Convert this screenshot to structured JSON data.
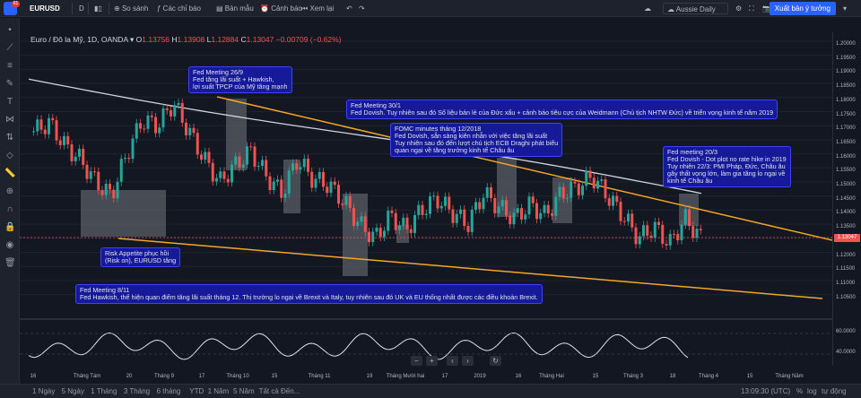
{
  "topbar": {
    "badge": "61",
    "symbol": "EURUSD",
    "interval": "D",
    "compare": "So sánh",
    "indicators": "Các chỉ báo",
    "templates": "Bản mẫu",
    "alert": "Cảnh báo",
    "replay": "Xem lại",
    "layout_name": "Aussie Daily",
    "trade_button": "Xuất bản ý tưởng"
  },
  "legend": {
    "title": "Euro / Đô la Mỹ, 1D, OANDA",
    "o_label": "O",
    "o": "1.13756",
    "h_label": "H",
    "h": "1.13908",
    "l_label": "L",
    "l": "1.12884",
    "c_label": "C",
    "c": "1.13047",
    "change": "−0.00709 (−0.62%)"
  },
  "price_axis": {
    "ticks": [
      "1.20000",
      "1.19500",
      "1.19000",
      "1.18500",
      "1.18000",
      "1.17500",
      "1.17000",
      "1.16500",
      "1.16000",
      "1.15500",
      "1.15000",
      "1.14500",
      "1.14000",
      "1.13500",
      "1.12500",
      "1.12000",
      "1.11500",
      "1.11000",
      "1.10500"
    ],
    "last_price": "1.13047",
    "osc_ticks": [
      "60.0000",
      "40.0000"
    ]
  },
  "time_axis": {
    "ticks": [
      "16",
      "Tháng Tám",
      "20",
      "Tháng 9",
      "17",
      "Tháng 10",
      "15",
      "Tháng 11",
      "19",
      "Tháng Mười hai",
      "17",
      "2019",
      "16",
      "Tháng Hai",
      "15",
      "Tháng 3",
      "18",
      "Tháng 4",
      "15",
      "Tháng Năm"
    ]
  },
  "notes": {
    "n1": "Fed Meeting 26/9\nFed tăng lãi suất + Hawkish,\nlợi suất TPCP của Mỹ tăng mạnh",
    "n2": "Fed Meeting 30/1\nFed Dovish. Tuy nhiên sau đó Số liệu bán lẻ của Đức xấu + cảnh báo tiêu cực của Weidmann (Chủ tịch NHTW Đức) về triển vọng kinh tế năm 2019",
    "n3": "FOMC minutes tháng 12/2018\nFed Dovish, sẵn sàng kiên nhẫn với việc tăng lãi suất\nTuy nhiên sau đó đến lượt chủ tịch ECB Draghi phát biểu\nquan ngại về tăng trưởng kinh tế Châu âu",
    "n4": "Fed meeting 20/3\nFed Dovish - Dot plot no rate hike in 2019\nTuy nhiên 22/3: PMI Pháp, Đức, Châu âu\ngây thất vọng lớn, làm gia tăng lo ngại về\nkinh tế Châu âu",
    "n5": "Risk Appetite phục hồi\n(Risk on), EURUSD tăng",
    "n6": "Fed Meeting 8/11\nFed Hawkish, thể hiện quan điểm tăng lãi suất tháng 12. Thị trường lo ngại về Brexit và Italy, tuy nhiên sau đó UK và EU thống nhất được các điều khoản Brexit."
  },
  "bottombar": {
    "ranges": [
      "1 Ngày",
      "5 Ngày",
      "1 Tháng",
      "3 Tháng",
      "6 tháng",
      "YTD",
      "1 Năm",
      "5 Năm",
      "Tất cả"
    ],
    "goto": "Đến...",
    "clock": "13:09:30 (UTC)",
    "percent": "%",
    "log": "log",
    "auto": "tự động"
  },
  "colors": {
    "bg": "#131722",
    "up": "#26a69a",
    "down": "#ef5350",
    "trend": "#f5a623",
    "ma": "#d1d4dc",
    "note_bg": "#161a99"
  },
  "chart_data": {
    "type": "candlestick",
    "series": [
      {
        "name": "EURUSD",
        "close": [
          1.168,
          1.171,
          1.163,
          1.158,
          1.15,
          1.145,
          1.16,
          1.172,
          1.17,
          1.178,
          1.168,
          1.158,
          1.15,
          1.156,
          1.161,
          1.152,
          1.146,
          1.158,
          1.151,
          1.149,
          1.143,
          1.135,
          1.13,
          1.138,
          1.133,
          1.14,
          1.144,
          1.139,
          1.135,
          1.146,
          1.141,
          1.137,
          1.142,
          1.138,
          1.146,
          1.148,
          1.152,
          1.145,
          1.138,
          1.13,
          1.134,
          1.128,
          1.137,
          1.13
        ]
      }
    ],
    "ylim": [
      1.1,
      1.2
    ]
  }
}
